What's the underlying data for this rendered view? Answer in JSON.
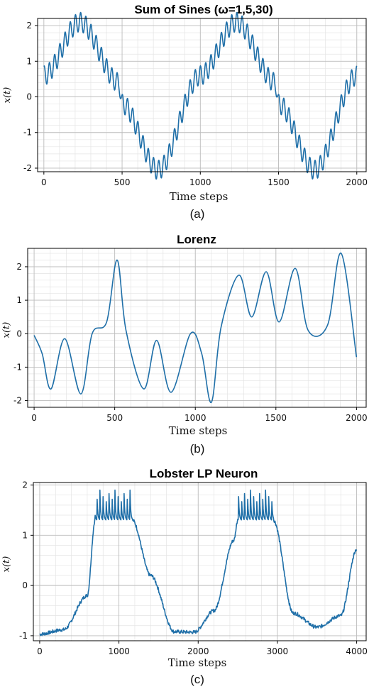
{
  "figure": {
    "line_color": "#1f6fa8",
    "grid": true,
    "panels": [
      {
        "id": "a",
        "subfig_label": "(a)",
        "chart_data": {
          "type": "line",
          "title": "Sum of Sines (ω=1,5,30)",
          "xlabel": "Time steps",
          "ylabel": "x(t)",
          "xlim": [
            -40,
            2060
          ],
          "ylim": [
            -2.1,
            2.2
          ],
          "xticks": [
            0,
            500,
            1000,
            1500,
            2000
          ],
          "yticks": [
            -2,
            -1,
            0,
            1,
            2
          ],
          "xtick_labels": [
            "0",
            "500",
            "1000",
            "1500",
            "2000"
          ],
          "ytick_labels": [
            "-2",
            "-1",
            "0",
            "1",
            "2"
          ],
          "series": [
            {
              "generator": "sum_of_sines",
              "n_points": 2000,
              "points": [
                [
                  0,
                  0.6
                ],
                [
                  230,
                  2.1
                ],
                [
                  480,
                  0.4
                ],
                [
                  500,
                  -0.2
                ],
                [
                  730,
                  -2.05
                ],
                [
                  1000,
                  0.6
                ],
                [
                  1230,
                  2.1
                ],
                [
                  1480,
                  0.4
                ],
                [
                  1500,
                  -0.2
                ],
                [
                  1730,
                  -2.05
                ],
                [
                  2000,
                  0.6
                ]
              ]
            }
          ]
        }
      },
      {
        "id": "b",
        "subfig_label": "(b)",
        "chart_data": {
          "type": "line",
          "title": "Lorenz",
          "xlabel": "Time steps",
          "ylabel": "x(t)",
          "xlim": [
            -40,
            2060
          ],
          "ylim": [
            -2.2,
            2.55
          ],
          "xticks": [
            0,
            500,
            1000,
            1500,
            2000
          ],
          "yticks": [
            -2,
            -1,
            0,
            1,
            2
          ],
          "xtick_labels": [
            "0",
            "500",
            "1000",
            "1500",
            "2000"
          ],
          "ytick_labels": [
            "-2",
            "-1",
            "0",
            "1",
            "2"
          ],
          "series": [
            {
              "points": [
                [
                  0,
                  -0.05
                ],
                [
                  50,
                  -0.6
                ],
                [
                  105,
                  -1.65
                ],
                [
                  190,
                  -0.15
                ],
                [
                  290,
                  -1.8
                ],
                [
                  360,
                  0.0
                ],
                [
                  450,
                  0.35
                ],
                [
                  515,
                  2.2
                ],
                [
                  570,
                  0.1
                ],
                [
                  680,
                  -1.65
                ],
                [
                  760,
                  -0.2
                ],
                [
                  850,
                  -1.75
                ],
                [
                  970,
                  0.0
                ],
                [
                  1040,
                  -0.6
                ],
                [
                  1100,
                  -2.05
                ],
                [
                  1160,
                  0.2
                ],
                [
                  1270,
                  1.75
                ],
                [
                  1350,
                  0.5
                ],
                [
                  1440,
                  1.85
                ],
                [
                  1520,
                  0.35
                ],
                [
                  1620,
                  1.95
                ],
                [
                  1700,
                  0.1
                ],
                [
                  1820,
                  0.25
                ],
                [
                  1905,
                  2.4
                ],
                [
                  2000,
                  -0.7
                ]
              ]
            }
          ]
        }
      },
      {
        "id": "c",
        "subfig_label": "(c)",
        "chart_data": {
          "type": "line",
          "title": "Lobster LP Neuron",
          "xlabel": "Time steps",
          "ylabel": "x(t)",
          "xlim": [
            -80,
            4120
          ],
          "ylim": [
            -1.1,
            2.05
          ],
          "xticks": [
            0,
            1000,
            2000,
            3000,
            4000
          ],
          "yticks": [
            -1,
            0,
            1,
            2
          ],
          "xtick_labels": [
            "0",
            "1000",
            "2000",
            "3000",
            "4000"
          ],
          "ytick_labels": [
            "-1",
            "0",
            "1",
            "2"
          ],
          "series": [
            {
              "generator": "lobster_neuron",
              "n_points": 4000,
              "points": [
                [
                  0,
                  -0.97
                ],
                [
                  300,
                  -0.88
                ],
                [
                  600,
                  -0.2
                ],
                [
                  700,
                  1.3
                ],
                [
                  1170,
                  1.3
                ],
                [
                  1400,
                  0.2
                ],
                [
                  1700,
                  -0.92
                ],
                [
                  1950,
                  -0.93
                ],
                [
                  2200,
                  -0.5
                ],
                [
                  2450,
                  0.9
                ],
                [
                  2500,
                  1.3
                ],
                [
                  2950,
                  1.3
                ],
                [
                  3200,
                  -0.55
                ],
                [
                  3500,
                  -0.83
                ],
                [
                  3800,
                  -0.6
                ],
                [
                  4000,
                  0.72
                ]
              ]
            }
          ]
        }
      }
    ]
  }
}
